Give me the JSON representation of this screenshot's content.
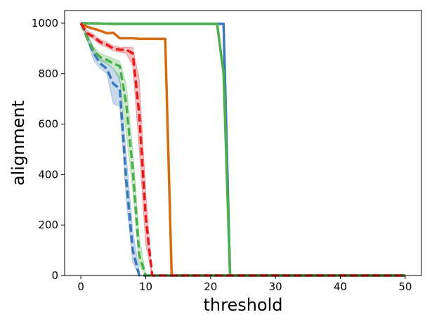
{
  "chart_data": {
    "type": "line",
    "title": "",
    "xlabel": "threshold",
    "ylabel": "alignment",
    "xlim": [
      -2.5,
      52.5
    ],
    "ylim": [
      0,
      1050
    ],
    "xticks": [
      0,
      10,
      20,
      30,
      40,
      50
    ],
    "yticks": [
      0,
      200,
      400,
      600,
      800,
      1000
    ],
    "grid": false,
    "legend": "none",
    "series": [
      {
        "color": "#d66a0f",
        "style": "solid",
        "x": [
          0,
          1,
          2,
          3,
          4,
          5,
          6,
          7,
          8,
          9,
          10,
          11,
          12,
          13,
          14,
          15,
          20,
          30,
          40,
          50
        ],
        "y": [
          1000,
          985,
          978,
          970,
          960,
          962,
          940,
          940,
          940,
          938,
          938,
          938,
          938,
          938,
          0,
          0,
          0,
          0,
          0,
          0
        ]
      },
      {
        "color": "#3a78b9",
        "style": "solid",
        "x": [
          0,
          5,
          10,
          15,
          20,
          21,
          22,
          23,
          24,
          30,
          40,
          50
        ],
        "y": [
          1000,
          997,
          997,
          997,
          997,
          997,
          997,
          0,
          0,
          0,
          0,
          0
        ]
      },
      {
        "color": "#4daf4a",
        "style": "solid",
        "x": [
          0,
          5,
          10,
          15,
          20,
          21,
          22,
          23,
          24,
          30,
          40,
          50
        ],
        "y": [
          1000,
          997,
          997,
          997,
          997,
          997,
          800,
          0,
          0,
          0,
          0,
          0
        ]
      },
      {
        "color": "#3a78b9",
        "style": "dashed",
        "x": [
          0,
          1,
          2,
          3,
          4,
          5,
          6,
          7,
          8,
          9,
          10,
          15,
          20,
          30,
          40,
          50
        ],
        "y": [
          1000,
          940,
          880,
          840,
          820,
          760,
          740,
          380,
          100,
          0,
          0,
          0,
          0,
          0,
          0,
          0
        ],
        "band": {
          "x": [
            0,
            1,
            2,
            3,
            4,
            5,
            6,
            7,
            8,
            9
          ],
          "lower": [
            1000,
            930,
            850,
            820,
            800,
            680,
            670,
            300,
            50,
            0
          ],
          "upper": [
            1000,
            955,
            900,
            860,
            845,
            820,
            790,
            480,
            180,
            20
          ]
        }
      },
      {
        "color": "#4daf4a",
        "style": "dashed",
        "x": [
          0,
          1,
          2,
          3,
          4,
          5,
          6,
          7,
          8,
          9,
          10,
          15,
          20,
          30,
          40,
          50
        ],
        "y": [
          1000,
          940,
          890,
          865,
          855,
          840,
          830,
          680,
          420,
          80,
          0,
          0,
          0,
          0,
          0,
          0
        ],
        "band": {
          "x": [
            0,
            1,
            2,
            3,
            4,
            5,
            6,
            7,
            8,
            9,
            10
          ],
          "lower": [
            1000,
            930,
            875,
            850,
            840,
            820,
            770,
            560,
            340,
            40,
            0
          ],
          "upper": [
            1000,
            955,
            905,
            880,
            870,
            860,
            850,
            760,
            500,
            160,
            0
          ]
        }
      },
      {
        "color": "#e41a1c",
        "style": "dashed",
        "x": [
          0,
          1,
          2,
          3,
          4,
          5,
          6,
          7,
          8,
          9,
          10,
          11,
          15,
          20,
          30,
          40,
          50
        ],
        "y": [
          1000,
          960,
          945,
          925,
          915,
          900,
          895,
          895,
          880,
          640,
          230,
          0,
          0,
          0,
          0,
          0,
          0
        ],
        "band": {
          "x": [
            0,
            1,
            2,
            3,
            4,
            5,
            6,
            7,
            8,
            9,
            10,
            11
          ],
          "lower": [
            1000,
            950,
            935,
            915,
            905,
            890,
            885,
            880,
            830,
            500,
            120,
            0
          ],
          "upper": [
            1000,
            970,
            955,
            935,
            925,
            910,
            905,
            905,
            905,
            780,
            330,
            0
          ]
        }
      }
    ]
  }
}
